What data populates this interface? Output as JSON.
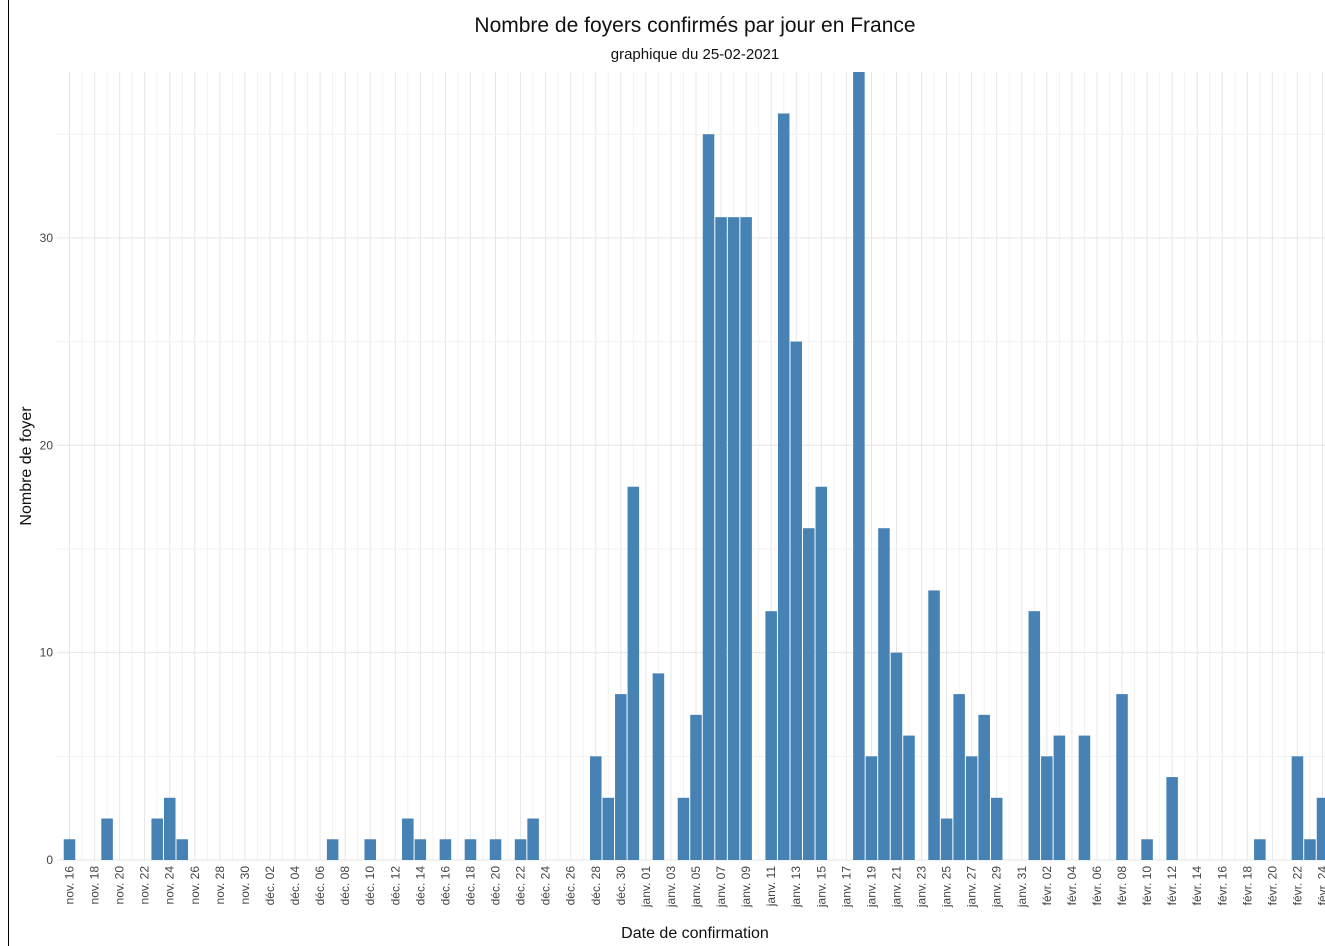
{
  "chart_data": {
    "type": "bar",
    "title": "Nombre de foyers confirmés par jour en France",
    "subtitle": "graphique du 25-02-2021",
    "xlabel": "Date de confirmation",
    "ylabel": "Nombre de foyer",
    "bar_color": "#4682B4",
    "grid": true,
    "ylim": [
      0,
      38
    ],
    "yticks": [
      0,
      10,
      20,
      30
    ],
    "x_tick_labels": [
      "nov. 16",
      "nov. 18",
      "nov. 20",
      "nov. 22",
      "nov. 24",
      "nov. 26",
      "nov. 28",
      "nov. 30",
      "déc. 02",
      "déc. 04",
      "déc. 06",
      "déc. 08",
      "déc. 10",
      "déc. 12",
      "déc. 14",
      "déc. 16",
      "déc. 18",
      "déc. 20",
      "déc. 22",
      "déc. 24",
      "déc. 26",
      "déc. 28",
      "déc. 30",
      "janv. 01",
      "janv. 03",
      "janv. 05",
      "janv. 07",
      "janv. 09",
      "janv. 11",
      "janv. 13",
      "janv. 15",
      "janv. 17",
      "janv. 19",
      "janv. 21",
      "janv. 23",
      "janv. 25",
      "janv. 27",
      "janv. 29",
      "janv. 31",
      "févr. 02",
      "févr. 04",
      "févr. 06",
      "févr. 08",
      "févr. 10",
      "févr. 12",
      "févr. 14",
      "févr. 16",
      "févr. 18",
      "févr. 20",
      "févr. 22",
      "févr. 24"
    ],
    "series": [
      {
        "x": [
          "2020-11-16",
          "2020-11-19",
          "2020-11-23",
          "2020-11-24",
          "2020-11-25",
          "2020-12-07",
          "2020-12-10",
          "2020-12-13",
          "2020-12-14",
          "2020-12-16",
          "2020-12-18",
          "2020-12-20",
          "2020-12-22",
          "2020-12-23",
          "2020-12-28",
          "2020-12-29",
          "2020-12-30",
          "2020-12-31",
          "2021-01-02",
          "2021-01-04",
          "2021-01-05",
          "2021-01-06",
          "2021-01-07",
          "2021-01-08",
          "2021-01-09",
          "2021-01-11",
          "2021-01-12",
          "2021-01-13",
          "2021-01-14",
          "2021-01-15",
          "2021-01-18",
          "2021-01-19",
          "2021-01-20",
          "2021-01-21",
          "2021-01-22",
          "2021-01-24",
          "2021-01-25",
          "2021-01-26",
          "2021-01-27",
          "2021-01-28",
          "2021-01-29",
          "2021-02-01",
          "2021-02-02",
          "2021-02-03",
          "2021-02-05",
          "2021-02-08",
          "2021-02-10",
          "2021-02-12",
          "2021-02-19",
          "2021-02-22",
          "2021-02-23",
          "2021-02-24"
        ],
        "y": [
          1,
          2,
          2,
          3,
          1,
          1,
          1,
          2,
          1,
          1,
          1,
          1,
          1,
          2,
          5,
          3,
          8,
          18,
          9,
          3,
          7,
          35,
          31,
          31,
          31,
          12,
          36,
          25,
          16,
          18,
          38,
          5,
          16,
          10,
          6,
          13,
          2,
          8,
          5,
          7,
          3,
          12,
          5,
          6,
          6,
          8,
          1,
          4,
          1,
          5,
          1,
          3
        ]
      }
    ]
  }
}
